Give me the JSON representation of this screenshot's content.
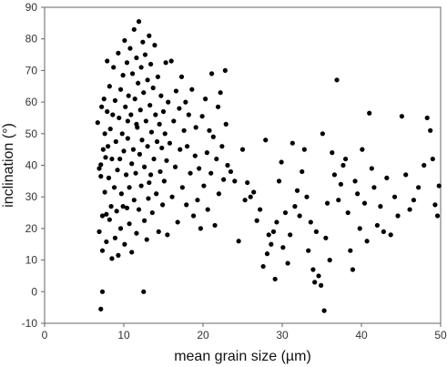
{
  "chart_data": {
    "type": "scatter",
    "xlabel": "mean grain size (µm)",
    "ylabel": "inclination (°)",
    "xlim": [
      0,
      50
    ],
    "ylim": [
      -10,
      90
    ],
    "xticks": [
      0,
      10,
      20,
      30,
      40,
      50
    ],
    "yticks": [
      -10,
      0,
      10,
      20,
      30,
      40,
      50,
      60,
      70,
      80,
      90
    ],
    "grid": false,
    "marker_color": "#000000",
    "series": [
      {
        "points": [
          [
            7.1,
            -5.5
          ],
          [
            7.3,
            0
          ],
          [
            12.5,
            0
          ],
          [
            13.2,
            34.5
          ],
          [
            10.5,
            54
          ],
          [
            11.6,
            53
          ],
          [
            6.7,
            53.5
          ],
          [
            6.9,
            19
          ],
          [
            6.9,
            39
          ],
          [
            7.1,
            36.5
          ],
          [
            7.1,
            40.2
          ],
          [
            7.2,
            58.5
          ],
          [
            7.3,
            24
          ],
          [
            7.3,
            13
          ],
          [
            7.4,
            45
          ],
          [
            7.5,
            61
          ],
          [
            7.6,
            50
          ],
          [
            7.6,
            31.5
          ],
          [
            7.7,
            42.5
          ],
          [
            7.8,
            24.5
          ],
          [
            7.8,
            15.8
          ],
          [
            7.9,
            57
          ],
          [
            7.9,
            73
          ],
          [
            8.0,
            46
          ],
          [
            8.1,
            36
          ],
          [
            8.2,
            65
          ],
          [
            8.2,
            22.8
          ],
          [
            8.3,
            51.5
          ],
          [
            8.4,
            27
          ],
          [
            8.5,
            10.5
          ],
          [
            8.5,
            42
          ],
          [
            8.6,
            56
          ],
          [
            8.7,
            71
          ],
          [
            8.8,
            33
          ],
          [
            8.9,
            60.5
          ],
          [
            8.9,
            17
          ],
          [
            9.0,
            47.5
          ],
          [
            9.1,
            25.5
          ],
          [
            9.2,
            38.5
          ],
          [
            9.3,
            75.5
          ],
          [
            9.3,
            11.5
          ],
          [
            9.4,
            55
          ],
          [
            9.5,
            42
          ],
          [
            9.6,
            64
          ],
          [
            9.6,
            20
          ],
          [
            9.7,
            31
          ],
          [
            9.8,
            50
          ],
          [
            9.9,
            68.5
          ],
          [
            9.9,
            27
          ],
          [
            10.0,
            44.5
          ],
          [
            10.1,
            79.5
          ],
          [
            10.1,
            15
          ],
          [
            10.2,
            58.5
          ],
          [
            10.3,
            37
          ],
          [
            10.4,
            72.5
          ],
          [
            10.4,
            26.5
          ],
          [
            10.5,
            48.5
          ],
          [
            10.6,
            62
          ],
          [
            10.7,
            33
          ],
          [
            10.7,
            21.5
          ],
          [
            10.8,
            77
          ],
          [
            10.9,
            56
          ],
          [
            11.0,
            40.5
          ],
          [
            11.0,
            12.5
          ],
          [
            11.1,
            69
          ],
          [
            11.2,
            45
          ],
          [
            11.3,
            29
          ],
          [
            11.3,
            83
          ],
          [
            11.4,
            61
          ],
          [
            11.5,
            37.5
          ],
          [
            11.6,
            74
          ],
          [
            11.6,
            18.5
          ],
          [
            11.7,
            52
          ],
          [
            11.8,
            66
          ],
          [
            11.9,
            26
          ],
          [
            11.9,
            85.5
          ],
          [
            12.0,
            43.5
          ],
          [
            12.1,
            57.5
          ],
          [
            12.2,
            71
          ],
          [
            12.2,
            33.5
          ],
          [
            12.3,
            48
          ],
          [
            12.4,
            79
          ],
          [
            12.5,
            63
          ],
          [
            12.6,
            22.5
          ],
          [
            12.6,
            39.5
          ],
          [
            12.7,
            75
          ],
          [
            12.8,
            54
          ],
          [
            12.9,
            16.5
          ],
          [
            13.0,
            67
          ],
          [
            13.0,
            46
          ],
          [
            13.1,
            29.5
          ],
          [
            13.2,
            81
          ],
          [
            13.3,
            59
          ],
          [
            13.4,
            37
          ],
          [
            13.4,
            72
          ],
          [
            13.5,
            50.5
          ],
          [
            13.6,
            25
          ],
          [
            13.7,
            64.5
          ],
          [
            13.8,
            42
          ],
          [
            13.9,
            78
          ],
          [
            14.0,
            56
          ],
          [
            14.1,
            31
          ],
          [
            14.2,
            47.5
          ],
          [
            14.3,
            68
          ],
          [
            14.4,
            19
          ],
          [
            14.5,
            53
          ],
          [
            14.6,
            38
          ],
          [
            14.7,
            62
          ],
          [
            14.8,
            45.5
          ],
          [
            14.9,
            27.5
          ],
          [
            15.0,
            57
          ],
          [
            15.1,
            35
          ],
          [
            15.2,
            50
          ],
          [
            15.3,
            72.5
          ],
          [
            15.4,
            41.5
          ],
          [
            15.5,
            18
          ],
          [
            15.6,
            60
          ],
          [
            15.8,
            47
          ],
          [
            16.0,
            73
          ],
          [
            16.1,
            30
          ],
          [
            16.3,
            54
          ],
          [
            16.5,
            39.5
          ],
          [
            16.6,
            63.5
          ],
          [
            16.8,
            22
          ],
          [
            17.0,
            58
          ],
          [
            17.1,
            45
          ],
          [
            17.3,
            68
          ],
          [
            17.4,
            33
          ],
          [
            17.6,
            51
          ],
          [
            17.8,
            60
          ],
          [
            17.9,
            27.5
          ],
          [
            18.0,
            46
          ],
          [
            18.2,
            56
          ],
          [
            18.4,
            37.5
          ],
          [
            18.6,
            64
          ],
          [
            18.8,
            24
          ],
          [
            19.0,
            43
          ],
          [
            19.1,
            52
          ],
          [
            19.3,
            29
          ],
          [
            19.5,
            39
          ],
          [
            19.7,
            20
          ],
          [
            19.9,
            55.5
          ],
          [
            20.1,
            33.5
          ],
          [
            20.3,
            61
          ],
          [
            20.5,
            44
          ],
          [
            20.6,
            26
          ],
          [
            20.8,
            51
          ],
          [
            21.0,
            37.5
          ],
          [
            21.1,
            69
          ],
          [
            21.3,
            49
          ],
          [
            21.5,
            21
          ],
          [
            21.7,
            42
          ],
          [
            21.9,
            58.5
          ],
          [
            22.0,
            31
          ],
          [
            22.2,
            63
          ],
          [
            22.4,
            46
          ],
          [
            22.6,
            35.5
          ],
          [
            22.8,
            70
          ],
          [
            22.9,
            53
          ],
          [
            23.1,
            40
          ],
          [
            23.5,
            38
          ],
          [
            24.0,
            35
          ],
          [
            24.5,
            16
          ],
          [
            25.0,
            45
          ],
          [
            25.3,
            29
          ],
          [
            25.6,
            34.5
          ],
          [
            26.0,
            30
          ],
          [
            26.4,
            31.5
          ],
          [
            26.8,
            22.5
          ],
          [
            27.2,
            26
          ],
          [
            27.6,
            8
          ],
          [
            27.9,
            48
          ],
          [
            28.1,
            12
          ],
          [
            28.3,
            18
          ],
          [
            28.6,
            15
          ],
          [
            28.9,
            19
          ],
          [
            29.1,
            4
          ],
          [
            29.3,
            22
          ],
          [
            29.6,
            35
          ],
          [
            29.9,
            41
          ],
          [
            30.1,
            14
          ],
          [
            30.4,
            25
          ],
          [
            30.7,
            9
          ],
          [
            31.0,
            18
          ],
          [
            31.3,
            47
          ],
          [
            31.6,
            27
          ],
          [
            31.9,
            32
          ],
          [
            32.2,
            24
          ],
          [
            32.5,
            38
          ],
          [
            32.8,
            45
          ],
          [
            33.1,
            30
          ],
          [
            33.3,
            13
          ],
          [
            33.6,
            22
          ],
          [
            33.9,
            7
          ],
          [
            34.1,
            3
          ],
          [
            34.3,
            19
          ],
          [
            34.6,
            5
          ],
          [
            34.9,
            2
          ],
          [
            35.1,
            50
          ],
          [
            35.3,
            -6
          ],
          [
            35.5,
            17
          ],
          [
            35.7,
            28
          ],
          [
            36.0,
            10
          ],
          [
            36.3,
            44
          ],
          [
            36.6,
            37
          ],
          [
            36.9,
            67
          ],
          [
            37.1,
            29
          ],
          [
            37.4,
            34
          ],
          [
            37.7,
            40
          ],
          [
            38.0,
            42
          ],
          [
            38.3,
            25
          ],
          [
            38.6,
            13
          ],
          [
            38.9,
            7
          ],
          [
            39.2,
            35
          ],
          [
            39.5,
            31
          ],
          [
            39.8,
            20
          ],
          [
            40.1,
            45
          ],
          [
            40.4,
            28
          ],
          [
            40.7,
            16
          ],
          [
            41.0,
            56.5
          ],
          [
            41.3,
            39
          ],
          [
            41.6,
            33
          ],
          [
            42.0,
            21
          ],
          [
            42.4,
            27
          ],
          [
            42.8,
            19
          ],
          [
            43.2,
            36
          ],
          [
            43.7,
            18
          ],
          [
            44.2,
            30
          ],
          [
            44.6,
            24
          ],
          [
            45.1,
            55.5
          ],
          [
            45.6,
            37
          ],
          [
            46.1,
            26
          ],
          [
            46.6,
            29
          ],
          [
            47.2,
            33
          ],
          [
            47.9,
            40
          ],
          [
            48.3,
            55
          ],
          [
            48.7,
            51
          ],
          [
            49.0,
            42
          ],
          [
            49.3,
            27.5
          ],
          [
            49.6,
            24
          ],
          [
            49.8,
            33.5
          ]
        ]
      }
    ]
  }
}
